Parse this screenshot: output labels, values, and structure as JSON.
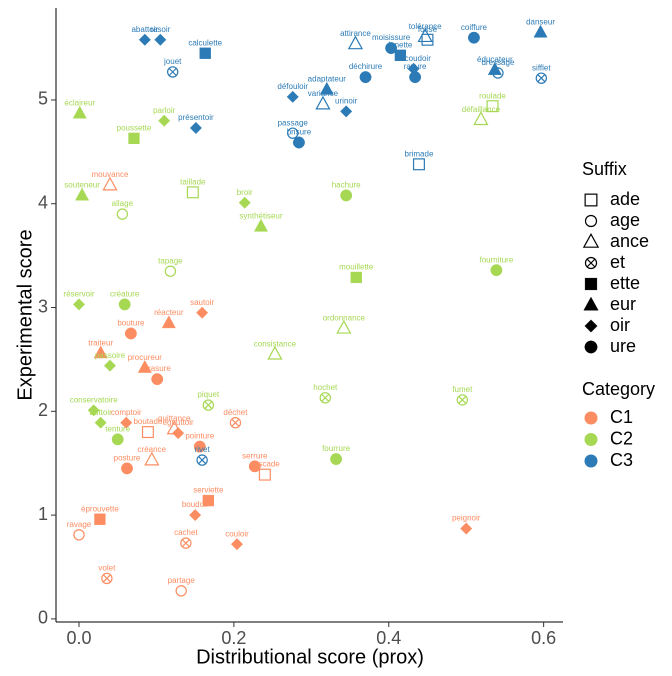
{
  "chart_data": {
    "type": "scatter",
    "xlabel": "Distributional score (prox)",
    "ylabel": "Experimental score",
    "xlim": [
      -0.0297,
      0.625
    ],
    "ylim": [
      -0.03,
      5.886
    ],
    "xticks": [
      {
        "value": 0,
        "label": "0.0"
      },
      0.2,
      0.4,
      0.6
    ],
    "yticks": [
      0,
      1,
      2,
      3,
      4,
      5
    ],
    "grid": false,
    "suffix_legend": {
      "title": "Suffix",
      "names": [
        "ade",
        "age",
        "ance",
        "et",
        "ette",
        "eur",
        "oir",
        "ure"
      ]
    },
    "category_legend": {
      "title": "Category"
    },
    "series": [
      {
        "name": "C1",
        "color": "#fc8d62",
        "points": [
          {
            "label": "mouvance",
            "x": 0.04,
            "y": 4.18,
            "suffix": "ance"
          },
          {
            "label": "sautoir",
            "x": 0.159,
            "y": 2.95,
            "suffix": "oir"
          },
          {
            "label": "réacteur",
            "x": 0.116,
            "y": 2.85,
            "suffix": "eur"
          },
          {
            "label": "bouture",
            "x": 0.067,
            "y": 2.75,
            "suffix": "ure"
          },
          {
            "label": "traiteur",
            "x": 0.028,
            "y": 2.56,
            "suffix": "eur"
          },
          {
            "label": "procureur",
            "x": 0.085,
            "y": 2.42,
            "suffix": "eur"
          },
          {
            "label": "brasure",
            "x": 0.101,
            "y": 2.31,
            "suffix": "ure"
          },
          {
            "label": "comptoir",
            "x": 0.061,
            "y": 1.89,
            "suffix": "oir"
          },
          {
            "label": "boutade",
            "x": 0.089,
            "y": 1.8,
            "suffix": "ade"
          },
          {
            "label": "quittance",
            "x": 0.123,
            "y": 1.83,
            "suffix": "ance"
          },
          {
            "label": "égouttoir",
            "x": 0.128,
            "y": 1.79,
            "suffix": "oir"
          },
          {
            "label": "déchet",
            "x": 0.202,
            "y": 1.89,
            "suffix": "et"
          },
          {
            "label": "pointure",
            "x": 0.156,
            "y": 1.66,
            "suffix": "ure"
          },
          {
            "label": "créance",
            "x": 0.094,
            "y": 1.53,
            "suffix": "ance"
          },
          {
            "label": "posture",
            "x": 0.062,
            "y": 1.45,
            "suffix": "ure"
          },
          {
            "label": "serrure",
            "x": 0.227,
            "y": 1.47,
            "suffix": "ure"
          },
          {
            "label": "cascade",
            "x": 0.24,
            "y": 1.39,
            "suffix": "ade"
          },
          {
            "label": "serviette",
            "x": 0.167,
            "y": 1.14,
            "suffix": "ette"
          },
          {
            "label": "boudoir",
            "x": 0.15,
            "y": 1.0,
            "suffix": "oir"
          },
          {
            "label": "éprouvette",
            "x": 0.027,
            "y": 0.96,
            "suffix": "ette"
          },
          {
            "label": "ravage",
            "x": 0.0,
            "y": 0.81,
            "suffix": "age"
          },
          {
            "label": "cachet",
            "x": 0.138,
            "y": 0.73,
            "suffix": "et"
          },
          {
            "label": "couloir",
            "x": 0.204,
            "y": 0.72,
            "suffix": "oir"
          },
          {
            "label": "peignoir",
            "x": 0.5,
            "y": 0.87,
            "suffix": "oir"
          },
          {
            "label": "volet",
            "x": 0.036,
            "y": 0.39,
            "suffix": "et"
          },
          {
            "label": "partage",
            "x": 0.132,
            "y": 0.27,
            "suffix": "age"
          }
        ]
      },
      {
        "name": "C2",
        "color": "#a6d854",
        "points": [
          {
            "label": "éclaireur",
            "x": 0.001,
            "y": 4.87,
            "suffix": "eur"
          },
          {
            "label": "parloir",
            "x": 0.11,
            "y": 4.8,
            "suffix": "oir"
          },
          {
            "label": "poussette",
            "x": 0.071,
            "y": 4.63,
            "suffix": "ette"
          },
          {
            "label": "roulade",
            "x": 0.534,
            "y": 4.94,
            "suffix": "ade"
          },
          {
            "label": "défaillance",
            "x": 0.519,
            "y": 4.81,
            "suffix": "ance"
          },
          {
            "label": "souteneur",
            "x": 0.004,
            "y": 4.08,
            "suffix": "eur"
          },
          {
            "label": "taillade",
            "x": 0.147,
            "y": 4.11,
            "suffix": "ade"
          },
          {
            "label": "allage",
            "x": 0.056,
            "y": 3.9,
            "suffix": "age"
          },
          {
            "label": "broir",
            "x": 0.214,
            "y": 4.01,
            "suffix": "oir"
          },
          {
            "label": "hachure",
            "x": 0.345,
            "y": 4.08,
            "suffix": "ure"
          },
          {
            "label": "synthétiseur",
            "x": 0.235,
            "y": 3.78,
            "suffix": "eur"
          },
          {
            "label": "tapage",
            "x": 0.118,
            "y": 3.35,
            "suffix": "age"
          },
          {
            "label": "mouillette",
            "x": 0.358,
            "y": 3.29,
            "suffix": "ette"
          },
          {
            "label": "fourniture",
            "x": 0.539,
            "y": 3.36,
            "suffix": "ure"
          },
          {
            "label": "réservoir",
            "x": 0.0,
            "y": 3.03,
            "suffix": "oir"
          },
          {
            "label": "créature",
            "x": 0.059,
            "y": 3.03,
            "suffix": "ure"
          },
          {
            "label": "ordonnance",
            "x": 0.342,
            "y": 2.8,
            "suffix": "ance"
          },
          {
            "label": "consistance",
            "x": 0.253,
            "y": 2.55,
            "suffix": "ance"
          },
          {
            "label": "passoire",
            "x": 0.04,
            "y": 2.44,
            "suffix": "oir"
          },
          {
            "label": "hochet",
            "x": 0.318,
            "y": 2.13,
            "suffix": "et"
          },
          {
            "label": "fumet",
            "x": 0.495,
            "y": 2.11,
            "suffix": "et"
          },
          {
            "label": "conservatoire",
            "x": 0.019,
            "y": 2.01,
            "suffix": "oir"
          },
          {
            "label": "piquet",
            "x": 0.167,
            "y": 2.06,
            "suffix": "et"
          },
          {
            "label": "buttoir",
            "x": 0.028,
            "y": 1.89,
            "suffix": "oir"
          },
          {
            "label": "tenture",
            "x": 0.05,
            "y": 1.73,
            "suffix": "ure"
          },
          {
            "label": "fourrure",
            "x": 0.332,
            "y": 1.54,
            "suffix": "ure"
          }
        ]
      },
      {
        "name": "C3",
        "color": "#2c7bb6",
        "points": [
          {
            "label": "abattoir",
            "x": 0.085,
            "y": 5.58,
            "suffix": "oir"
          },
          {
            "label": "rasoir",
            "x": 0.105,
            "y": 5.58,
            "suffix": "oir"
          },
          {
            "label": "calculette",
            "x": 0.163,
            "y": 5.45,
            "suffix": "ette"
          },
          {
            "label": "jouet",
            "x": 0.121,
            "y": 5.27,
            "suffix": "et"
          },
          {
            "label": "présentoir",
            "x": 0.151,
            "y": 4.73,
            "suffix": "oir"
          },
          {
            "label": "attirance",
            "x": 0.357,
            "y": 5.54,
            "suffix": "ance"
          },
          {
            "label": "moisissure",
            "x": 0.403,
            "y": 5.5,
            "suffix": "ure"
          },
          {
            "label": "lunette",
            "x": 0.415,
            "y": 5.43,
            "suffix": "ette"
          },
          {
            "label": "tolérance",
            "x": 0.447,
            "y": 5.61,
            "suffix": "ance"
          },
          {
            "label": "fossé",
            "x": 0.45,
            "y": 5.58,
            "suffix": "ade"
          },
          {
            "label": "coiffure",
            "x": 0.51,
            "y": 5.6,
            "suffix": "ure"
          },
          {
            "label": "danseur",
            "x": 0.596,
            "y": 5.65,
            "suffix": "eur"
          },
          {
            "label": "défouloir",
            "x": 0.276,
            "y": 5.03,
            "suffix": "oir"
          },
          {
            "label": "adaptateur",
            "x": 0.32,
            "y": 5.1,
            "suffix": "eur"
          },
          {
            "label": "variance",
            "x": 0.315,
            "y": 4.96,
            "suffix": "ance"
          },
          {
            "label": "urinoir",
            "x": 0.345,
            "y": 4.89,
            "suffix": "oir"
          },
          {
            "label": "déchirure",
            "x": 0.37,
            "y": 5.22,
            "suffix": "ure"
          },
          {
            "label": "accoudoir",
            "x": 0.432,
            "y": 5.3,
            "suffix": "oir"
          },
          {
            "label": "rayure",
            "x": 0.434,
            "y": 5.22,
            "suffix": "ure"
          },
          {
            "label": "éducateur",
            "x": 0.537,
            "y": 5.29,
            "suffix": "eur"
          },
          {
            "label": "dressage",
            "x": 0.541,
            "y": 5.26,
            "suffix": "age"
          },
          {
            "label": "sifflet",
            "x": 0.597,
            "y": 5.21,
            "suffix": "et"
          },
          {
            "label": "passage",
            "x": 0.276,
            "y": 4.68,
            "suffix": "age"
          },
          {
            "label": "brisure",
            "x": 0.284,
            "y": 4.59,
            "suffix": "ure"
          },
          {
            "label": "brimade",
            "x": 0.439,
            "y": 4.38,
            "suffix": "ade"
          },
          {
            "label": "rivet",
            "x": 0.159,
            "y": 1.53,
            "suffix": "et"
          }
        ]
      }
    ]
  }
}
